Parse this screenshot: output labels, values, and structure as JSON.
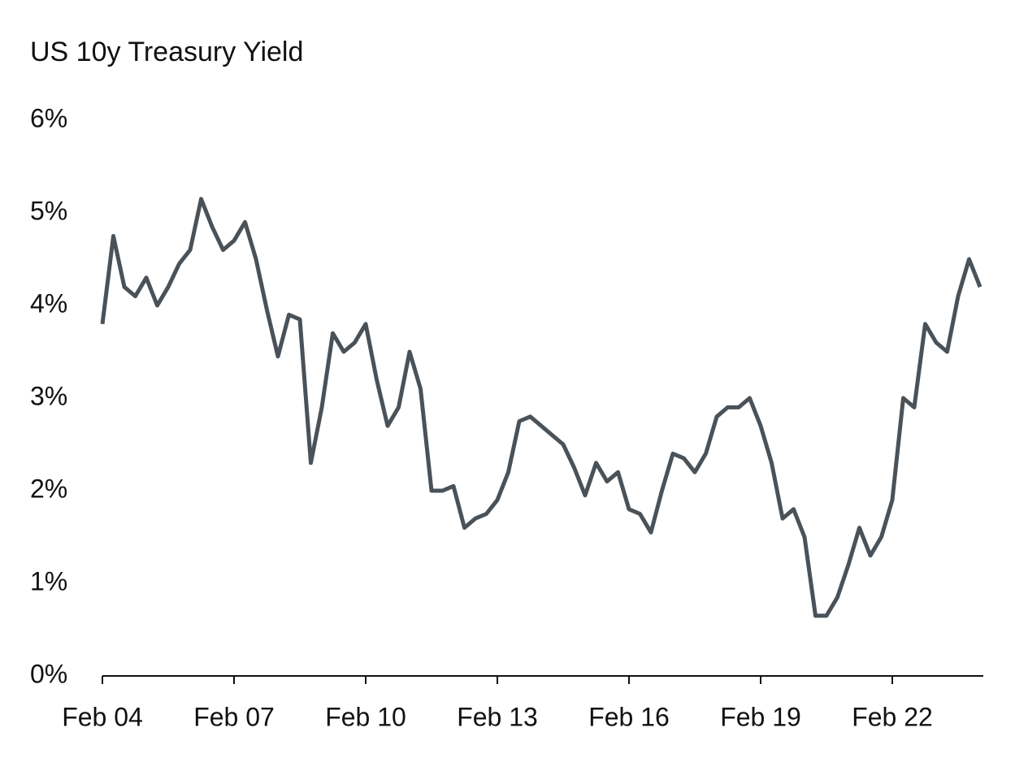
{
  "chart_data": {
    "type": "line",
    "title": "US 10y Treasury Yield",
    "categories": [
      "Feb 04",
      null,
      null,
      null,
      null,
      null,
      null,
      null,
      null,
      null,
      null,
      null,
      "Feb 07",
      null,
      null,
      null,
      null,
      null,
      null,
      null,
      null,
      null,
      null,
      null,
      "Feb 10",
      null,
      null,
      null,
      null,
      null,
      null,
      null,
      null,
      null,
      null,
      null,
      "Feb 13",
      null,
      null,
      null,
      null,
      null,
      null,
      null,
      null,
      null,
      null,
      null,
      "Feb 16",
      null,
      null,
      null,
      null,
      null,
      null,
      null,
      null,
      null,
      null,
      null,
      "Feb 19",
      null,
      null,
      null,
      null,
      null,
      null,
      null,
      null,
      null,
      null,
      null,
      "Feb 22",
      null,
      null,
      null,
      null,
      null,
      null,
      null,
      null
    ],
    "series": [
      {
        "name": "US 10y Treasury Yield",
        "color": "#4a5259",
        "values": [
          3.8,
          4.75,
          4.2,
          4.1,
          4.3,
          4.0,
          4.2,
          4.45,
          4.6,
          5.15,
          4.85,
          4.6,
          4.7,
          4.9,
          4.5,
          3.95,
          3.45,
          3.9,
          3.85,
          2.3,
          2.9,
          3.7,
          3.5,
          3.6,
          3.8,
          3.2,
          2.7,
          2.9,
          3.5,
          3.1,
          2.0,
          2.0,
          2.05,
          1.6,
          1.7,
          1.75,
          1.9,
          2.2,
          2.75,
          2.8,
          2.7,
          2.6,
          2.5,
          2.25,
          1.95,
          2.3,
          2.1,
          2.2,
          1.8,
          1.75,
          1.55,
          2.0,
          2.4,
          2.35,
          2.2,
          2.4,
          2.8,
          2.9,
          2.9,
          3.0,
          2.7,
          2.3,
          1.7,
          1.8,
          1.5,
          0.65,
          0.65,
          0.85,
          1.2,
          1.6,
          1.3,
          1.5,
          1.9,
          3.0,
          2.9,
          3.8,
          3.6,
          3.5,
          4.1,
          4.5,
          4.2
        ]
      }
    ],
    "ylim": [
      0,
      6
    ],
    "yticks": [
      {
        "value": 0,
        "label": "0%"
      },
      {
        "value": 1,
        "label": "1%"
      },
      {
        "value": 2,
        "label": "2%"
      },
      {
        "value": 3,
        "label": "3%"
      },
      {
        "value": 4,
        "label": "4%"
      },
      {
        "value": 5,
        "label": "5%"
      },
      {
        "value": 6,
        "label": "6%"
      }
    ],
    "grid": false
  }
}
